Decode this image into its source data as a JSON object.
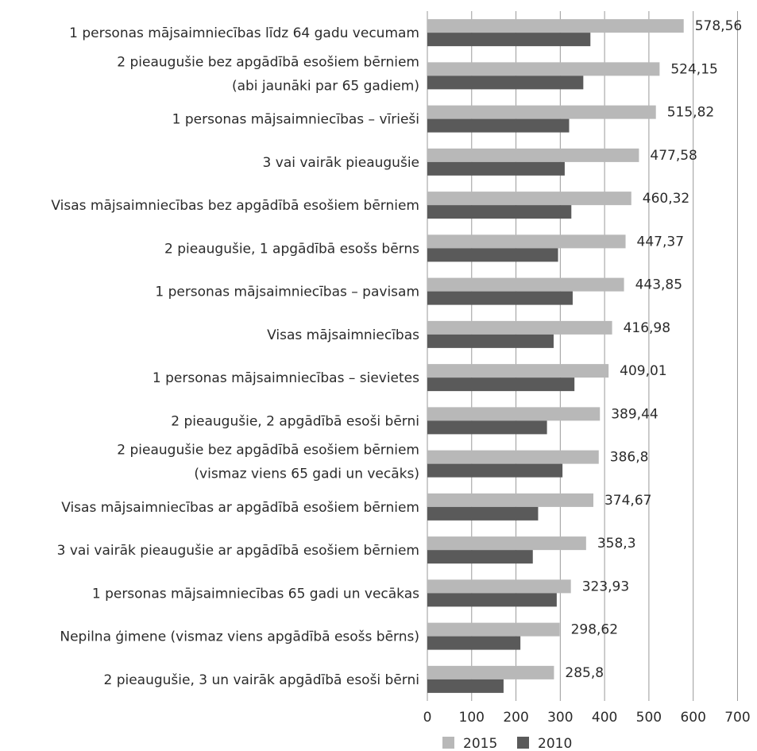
{
  "chart_data": {
    "type": "bar",
    "orientation": "horizontal",
    "categories": [
      [
        "1 personas mājsaimniecības līdz 64 gadu vecumam"
      ],
      [
        "2 pieaugušie bez apgādībā esošiem bērniem",
        "(abi jaunāki par 65 gadiem)"
      ],
      [
        "1 personas mājsaimniecības – vīrieši"
      ],
      [
        "3 vai vairāk pieaugušie"
      ],
      [
        "Visas mājsaimniecības bez apgādībā esošiem bērniem"
      ],
      [
        "2 pieaugušie, 1 apgādībā esošs bērns"
      ],
      [
        "1 personas mājsaimniecības – pavisam"
      ],
      [
        "Visas mājsaimniecības"
      ],
      [
        "1 personas mājsaimniecības – sievietes"
      ],
      [
        "2 pieaugušie, 2 apgādībā esoši bērni"
      ],
      [
        "2 pieaugušie bez apgādībā esošiem bērniem",
        "(vismaz viens 65 gadi un vecāks)"
      ],
      [
        "Visas mājsaimniecības ar apgādībā esošiem bērniem"
      ],
      [
        "3 vai vairāk pieaugušie ar apgādībā esošiem bērniem"
      ],
      [
        "1 personas mājsaimniecības 65 gadi un vecākas"
      ],
      [
        "Nepilna ģimene (vismaz viens apgādībā esošs bērns)"
      ],
      [
        "2 pieaugušie, 3 un vairāk apgādībā esoši bērni"
      ]
    ],
    "series": [
      {
        "name": "2015",
        "color": "#b8b8b8",
        "values": [
          578.56,
          524.15,
          515.82,
          477.58,
          460.32,
          447.37,
          443.85,
          416.98,
          409.01,
          389.44,
          386.8,
          374.67,
          358.3,
          323.93,
          298.62,
          285.8
        ],
        "labels": [
          "578,56",
          "524,15",
          "515,82",
          "477,58",
          "460,32",
          "447,37",
          "443,85",
          "416,98",
          "409,01",
          "389,44",
          "386,8",
          "374,67",
          "358,3",
          "323,93",
          "298,62",
          "285,8"
        ]
      },
      {
        "name": "2010",
        "color": "#5a5a5a",
        "values": [
          368,
          352,
          320,
          310,
          325,
          295,
          328,
          285,
          332,
          270,
          305,
          250,
          238,
          292,
          210,
          172
        ]
      }
    ],
    "xlim": [
      0,
      700
    ],
    "xticks": [
      "0",
      "100",
      "200",
      "300",
      "400",
      "500",
      "600",
      "700"
    ],
    "legend_position": "bottom",
    "grid": true
  }
}
